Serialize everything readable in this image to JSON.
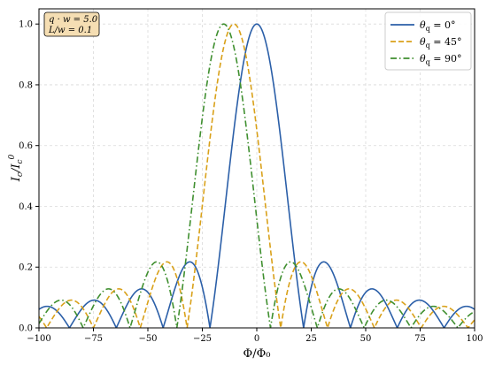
{
  "chart_data": {
    "type": "line",
    "xlabel": "Φ/Φ₀",
    "ylabel": "I_c/I_c⁰",
    "xlim": [
      -100,
      100
    ],
    "ylim": [
      0,
      1.05
    ],
    "x_ticks": [
      -100,
      -75,
      -50,
      -25,
      0,
      25,
      50,
      75,
      100
    ],
    "y_ticks": [
      0.0,
      0.2,
      0.4,
      0.6,
      0.8,
      1.0
    ],
    "x_tick_labels": [
      "−100",
      "−75",
      "−50",
      "−25",
      "0",
      "25",
      "50",
      "75",
      "100"
    ],
    "y_tick_labels": [
      "0.0",
      "0.2",
      "0.4",
      "0.6",
      "0.8",
      "1.0"
    ],
    "grid": true,
    "legend_position": "top-right",
    "info_box": {
      "line1": "q · w = 5.0",
      "line2": "L/w = 0.1",
      "background": "#f5deb3"
    },
    "series": [
      {
        "name": "θq = 0°",
        "name_main": "θ",
        "name_sub": "q",
        "name_rest": " = 0°",
        "color": "#2b5fa8",
        "dash": "solid",
        "center": 0,
        "zero_spacing": 21.5,
        "peak_value": 1.0
      },
      {
        "name": "θq = 45°",
        "name_main": "θ",
        "name_sub": "q",
        "name_rest": " = 45°",
        "color": "#d9a11a",
        "dash": "dashed",
        "center": -10.5,
        "zero_spacing": 21.5,
        "peak_value": 1.0
      },
      {
        "name": "θq = 90°",
        "name_main": "θ",
        "name_sub": "q",
        "name_rest": " = 90°",
        "color": "#3f8f2f",
        "dash": "dashdot",
        "center": -15.2,
        "zero_spacing": 21.5,
        "peak_value": 1.0
      }
    ]
  }
}
